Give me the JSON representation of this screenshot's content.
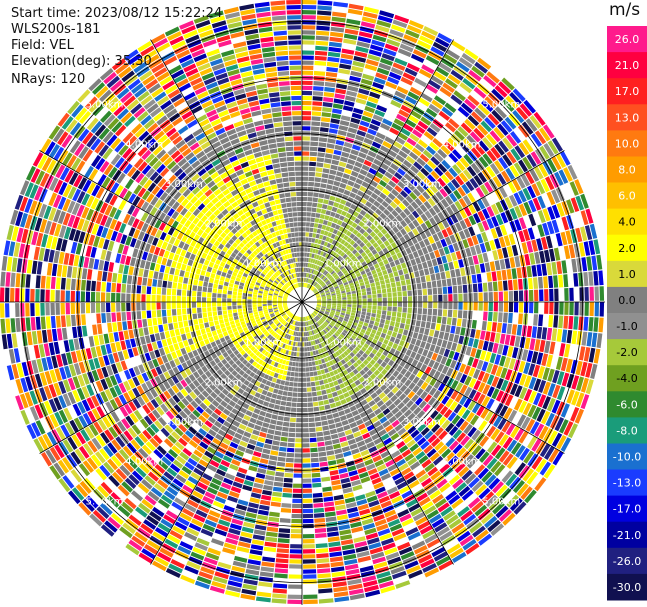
{
  "header": {
    "start_time": "Start time: 2023/08/12 15:22:24",
    "instrument": "WLS200s-181",
    "field": "Field: VEL",
    "elevation": "Elevation(deg): 35.30",
    "nrays": "NRays: 120"
  },
  "chart_data": {
    "type": "heatmap",
    "projection": "polar-ppi",
    "field": "VEL",
    "units": "m/s",
    "nrays": 120,
    "elevation_deg": 35.3,
    "range_rings_km": [
      1.0,
      2.0,
      3.0,
      4.0,
      5.0
    ],
    "ring_labels": [
      "1.00km",
      "2.00km",
      "3.00km",
      "4.00km",
      "5.00km"
    ],
    "azimuth_spokes_deg": [
      0,
      30,
      60,
      90,
      120,
      150,
      180,
      210,
      240,
      270,
      300,
      330
    ],
    "colorbar": {
      "label": "m/s",
      "ticks": [
        "26.0",
        "21.0",
        "17.0",
        "13.0",
        "10.0",
        "8.0",
        "6.0",
        "4.0",
        "2.0",
        "1.0",
        "0.0",
        "-1.0",
        "-2.0",
        "-4.0",
        "-6.0",
        "-8.0",
        "-10.0",
        "-13.0",
        "-17.0",
        "-21.0",
        "-26.0",
        "-30.0"
      ],
      "colors": [
        "#ff1a8c",
        "#ff0040",
        "#ff2020",
        "#ff5020",
        "#ff7a10",
        "#ff9c00",
        "#ffbf00",
        "#ffe000",
        "#ffff00",
        "#d9d93a",
        "#808080",
        "#909090",
        "#a6c93a",
        "#6fa020",
        "#2f8a2f",
        "#1a9c7a",
        "#1a70d0",
        "#1a3cff",
        "#0000e0",
        "#0000a0",
        "#202080",
        "#101050"
      ]
    },
    "pattern_notes": {
      "inner_region": "gray with green ring to the east and yellow patch to the west",
      "outer_region": "noise (multicolor speckle) beyond ~3 km"
    }
  }
}
